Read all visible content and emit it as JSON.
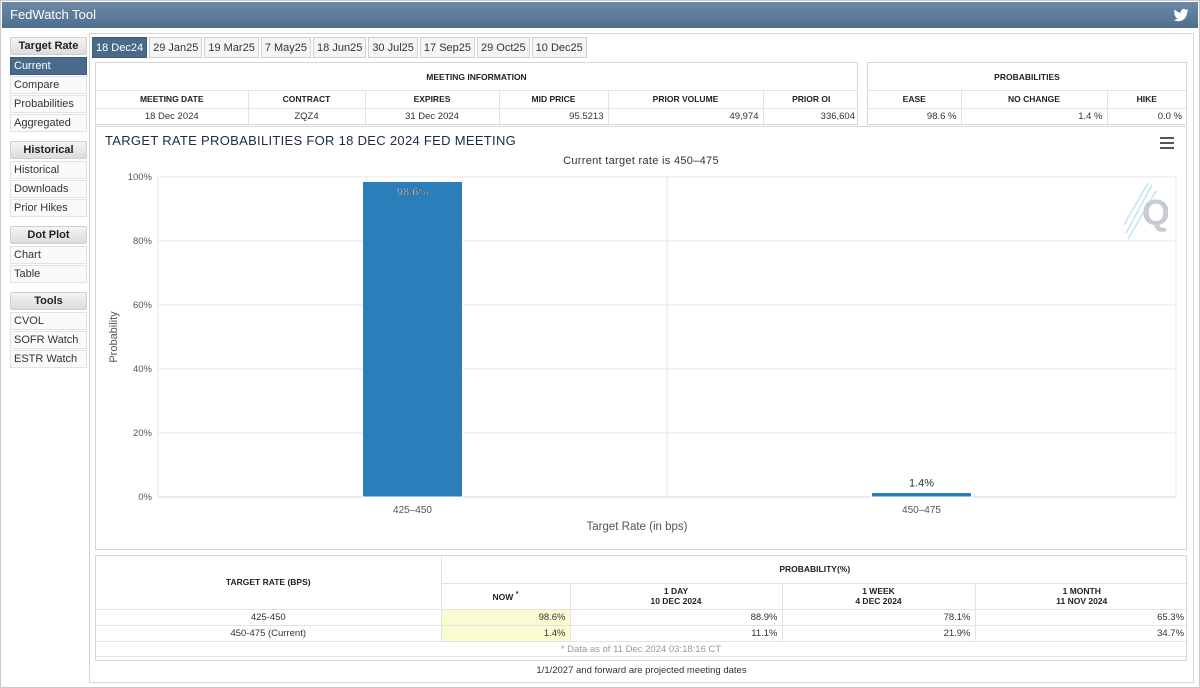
{
  "app": {
    "title": "FedWatch Tool",
    "twitter_icon": "twitter-icon"
  },
  "sidebar": {
    "sections": [
      {
        "heading": "Target Rate",
        "items": [
          {
            "label": "Current",
            "active": true
          },
          {
            "label": "Compare",
            "active": false
          },
          {
            "label": "Probabilities",
            "active": false
          },
          {
            "label": "Aggregated",
            "active": false
          }
        ]
      },
      {
        "heading": "Historical",
        "items": [
          {
            "label": "Historical",
            "active": false
          },
          {
            "label": "Downloads",
            "active": false
          },
          {
            "label": "Prior Hikes",
            "active": false
          }
        ]
      },
      {
        "heading": "Dot Plot",
        "items": [
          {
            "label": "Chart",
            "active": false
          },
          {
            "label": "Table",
            "active": false
          }
        ]
      },
      {
        "heading": "Tools",
        "items": [
          {
            "label": "CVOL",
            "active": false
          },
          {
            "label": "SOFR Watch",
            "active": false
          },
          {
            "label": "ESTR Watch",
            "active": false
          }
        ]
      }
    ]
  },
  "tabs": [
    {
      "label": "18 Dec24",
      "active": true
    },
    {
      "label": "29 Jan25",
      "active": false
    },
    {
      "label": "19 Mar25",
      "active": false
    },
    {
      "label": "7 May25",
      "active": false
    },
    {
      "label": "18 Jun25",
      "active": false
    },
    {
      "label": "30 Jul25",
      "active": false
    },
    {
      "label": "17 Sep25",
      "active": false
    },
    {
      "label": "29 Oct25",
      "active": false
    },
    {
      "label": "10 Dec25",
      "active": false
    }
  ],
  "meeting_info": {
    "heading": "MEETING INFORMATION",
    "headers": {
      "meeting_date": "MEETING DATE",
      "contract": "CONTRACT",
      "expires": "EXPIRES",
      "mid_price": "MID PRICE",
      "prior_volume": "PRIOR VOLUME",
      "prior_oi": "PRIOR OI"
    },
    "values": {
      "meeting_date": "18 Dec 2024",
      "contract": "ZQZ4",
      "expires": "31 Dec 2024",
      "mid_price": "95.5213",
      "prior_volume": "49,974",
      "prior_oi": "336,604"
    }
  },
  "probabilities": {
    "heading": "PROBABILITIES",
    "headers": {
      "ease": "EASE",
      "no_change": "NO CHANGE",
      "hike": "HIKE"
    },
    "values": {
      "ease": "98.6 %",
      "no_change": "1.4 %",
      "hike": "0.0 %"
    }
  },
  "chart": {
    "title": "TARGET RATE PROBABILITIES FOR 18 DEC 2024 FED MEETING",
    "subtitle": "Current target rate is 450–475",
    "menu_icon": "hamburger-menu-icon",
    "watermark": "Q"
  },
  "chart_data": {
    "type": "bar",
    "title": "TARGET RATE PROBABILITIES FOR 18 DEC 2024 FED MEETING",
    "subtitle": "Current target rate is 450–475",
    "categories": [
      "425–450",
      "450–475"
    ],
    "values": [
      98.6,
      1.4
    ],
    "data_labels": [
      "98.6%",
      "1.4%"
    ],
    "xlabel": "Target Rate (in bps)",
    "ylabel": "Probability",
    "ylim": [
      0,
      100
    ],
    "yticks": [
      0,
      20,
      40,
      60,
      80,
      100
    ],
    "ytick_labels": [
      "0%",
      "20%",
      "40%",
      "60%",
      "80%",
      "100%"
    ],
    "grid": true,
    "bar_color": "#2a7fba"
  },
  "prob_table": {
    "header_rate": "TARGET RATE (BPS)",
    "header_prob": "PROBABILITY(%)",
    "columns": [
      {
        "label": "NOW",
        "sup": "*",
        "date": ""
      },
      {
        "label": "1 DAY",
        "date": "10 DEC 2024"
      },
      {
        "label": "1 WEEK",
        "date": "4 DEC 2024"
      },
      {
        "label": "1 MONTH",
        "date": "11 NOV 2024"
      }
    ],
    "rows": [
      {
        "rate": "425-450",
        "now": "98.6%",
        "day": "88.9%",
        "week": "78.1%",
        "month": "65.3%"
      },
      {
        "rate": "450-475 (Current)",
        "now": "1.4%",
        "day": "11.1%",
        "week": "21.9%",
        "month": "34.7%"
      }
    ],
    "note": "* Data as of 11 Dec 2024 03:18:16 CT"
  },
  "footer_note": "1/1/2027 and forward are projected meeting dates"
}
